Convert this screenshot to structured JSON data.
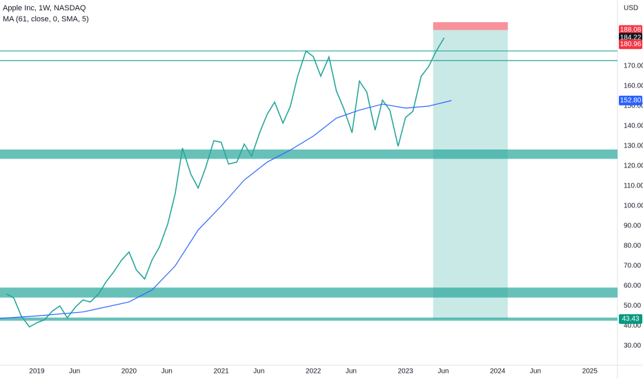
{
  "chart_data": {
    "type": "line",
    "title": "Apple Inc, 1W, NASDAQ",
    "subtitle": "MA (61, close, 0, SMA, 5)",
    "y_unit": "USD",
    "xlim": [
      2018.6,
      2025.3
    ],
    "ylim": [
      20.34,
      203.1
    ],
    "xticks": [
      2019,
      {
        "value": 2019.41,
        "label": "Jun"
      },
      2020,
      {
        "value": 2020.41,
        "label": "Jun"
      },
      2021,
      {
        "value": 2021.41,
        "label": "Jun"
      },
      2022,
      {
        "value": 2022.41,
        "label": "Jun"
      },
      2023,
      {
        "value": 2023.41,
        "label": "Jun"
      },
      2024,
      {
        "value": 2024.41,
        "label": "Jun"
      },
      2025
    ],
    "yticks": [
      {
        "value": 30,
        "label": "30.00"
      },
      {
        "value": 40,
        "label": "40.00"
      },
      {
        "value": 50,
        "label": "50.00"
      },
      {
        "value": 60,
        "label": "60.00"
      },
      {
        "value": 70,
        "label": "70.00"
      },
      {
        "value": 80,
        "label": "80.00"
      },
      {
        "value": 90,
        "label": "90.00"
      },
      {
        "value": 100,
        "label": "100.00"
      },
      {
        "value": 110,
        "label": "110.00"
      },
      {
        "value": 120,
        "label": "120.00"
      },
      {
        "value": 130,
        "label": "130.00"
      },
      {
        "value": 140,
        "label": "140.00"
      },
      {
        "value": 150,
        "label": "150.00"
      },
      {
        "value": 160,
        "label": "160.00"
      },
      {
        "value": 170,
        "label": "170.00"
      }
    ],
    "series": [
      {
        "color": "#26a69a",
        "x": [
          2018.67,
          2018.75,
          2018.83,
          2018.92,
          2019.0,
          2019.08,
          2019.17,
          2019.25,
          2019.33,
          2019.42,
          2019.5,
          2019.58,
          2019.67,
          2019.75,
          2019.83,
          2019.92,
          2020.0,
          2020.08,
          2020.17,
          2020.25,
          2020.33,
          2020.42,
          2020.5,
          2020.58,
          2020.67,
          2020.75,
          2020.83,
          2020.92,
          2021.0,
          2021.08,
          2021.17,
          2021.25,
          2021.33,
          2021.42,
          2021.5,
          2021.58,
          2021.67,
          2021.75,
          2021.83,
          2021.92,
          2022.0,
          2022.08,
          2022.17,
          2022.25,
          2022.33,
          2022.42,
          2022.5,
          2022.58,
          2022.67,
          2022.75,
          2022.83,
          2022.92,
          2023.0,
          2023.08,
          2023.17,
          2023.25,
          2023.33,
          2023.42
        ],
        "values": [
          56,
          54,
          45,
          39.5,
          41.6,
          43,
          47.5,
          50,
          44,
          49.5,
          53,
          52,
          56,
          62,
          66.8,
          73,
          77,
          68,
          63.5,
          73,
          79.5,
          91,
          106,
          129,
          116,
          109,
          119,
          132.7,
          131.9,
          121,
          122,
          131,
          125,
          137,
          146,
          152,
          141.5,
          149.8,
          165,
          177.6,
          174.8,
          165,
          174.6,
          157.6,
          148.8,
          136.7,
          162.5,
          157,
          138,
          153,
          148,
          129.9,
          144.3,
          147.4,
          164.9,
          169.7,
          177.3,
          184.22
        ]
      },
      {
        "color": "#2962ff",
        "x": [
          2018.6,
          2019.0,
          2019.5,
          2020.0,
          2020.25,
          2020.5,
          2020.75,
          2021.0,
          2021.25,
          2021.5,
          2021.75,
          2022.0,
          2022.25,
          2022.5,
          2022.75,
          2023.0,
          2023.25,
          2023.5
        ],
        "values": [
          43.8,
          45,
          47,
          52,
          58,
          70,
          88,
          100,
          113,
          122,
          128,
          135,
          144,
          148,
          151,
          149,
          150,
          152.8
        ]
      }
    ],
    "zones": [
      {
        "range": [
          123.6,
          128.3
        ]
      },
      {
        "range": [
          54.2,
          59.2
        ]
      },
      {
        "range": [
          42.6,
          44.2
        ]
      }
    ],
    "zone_color": "#26a69a",
    "hlines": [
      177.6,
      172.8
    ],
    "position": {
      "xrange": [
        2023.3,
        2024.11
      ],
      "stop": [
        188.08,
        192
      ],
      "target": [
        43.43,
        188.08
      ]
    },
    "price_labels": [
      {
        "value": 188.08,
        "color": "#f23645"
      },
      {
        "value": 184.22,
        "color": "#131722"
      },
      {
        "value": 180.96,
        "color": "#f23645"
      },
      {
        "value": 152.8,
        "label": "152.80",
        "color": "#2962ff"
      },
      {
        "value": 43.43,
        "color": "#089981"
      }
    ]
  }
}
